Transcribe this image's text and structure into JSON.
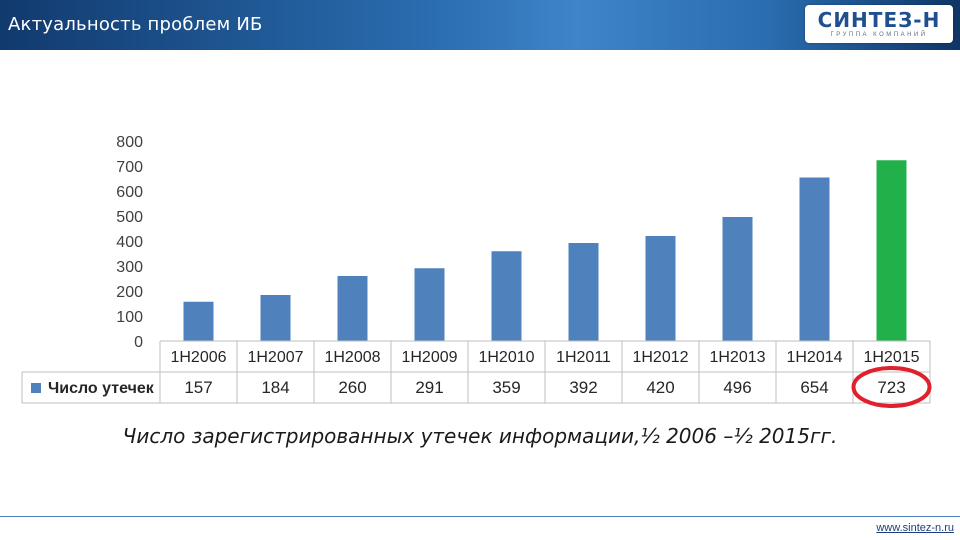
{
  "header": {
    "title": "Актуальность проблем ИБ"
  },
  "logo": {
    "main": "СИНТЕЗ-Н",
    "sub": "ГРУППА КОМПАНИЙ"
  },
  "chart_data": {
    "type": "bar",
    "categories": [
      "1H2006",
      "1H2007",
      "1H2008",
      "1H2009",
      "1H2010",
      "1H2011",
      "1H2012",
      "1H2013",
      "1H2014",
      "1H2015"
    ],
    "series": [
      {
        "name": "Число утечек",
        "values": [
          157,
          184,
          260,
          291,
          359,
          392,
          420,
          496,
          654,
          723
        ]
      }
    ],
    "ylim": [
      0,
      800
    ],
    "yticks": [
      0,
      100,
      200,
      300,
      400,
      500,
      600,
      700,
      800
    ],
    "grid": false,
    "data_table": true,
    "colors": {
      "bar": "#4f81bd",
      "highlight_bar": "#22b04b",
      "highlight_circle": "#e0202a"
    },
    "highlight_index": 9
  },
  "caption": "Число зарегистрированных утечек информации,½ 2006 –½ 2015гг.",
  "footer": {
    "link": "www.sintez-n.ru"
  }
}
